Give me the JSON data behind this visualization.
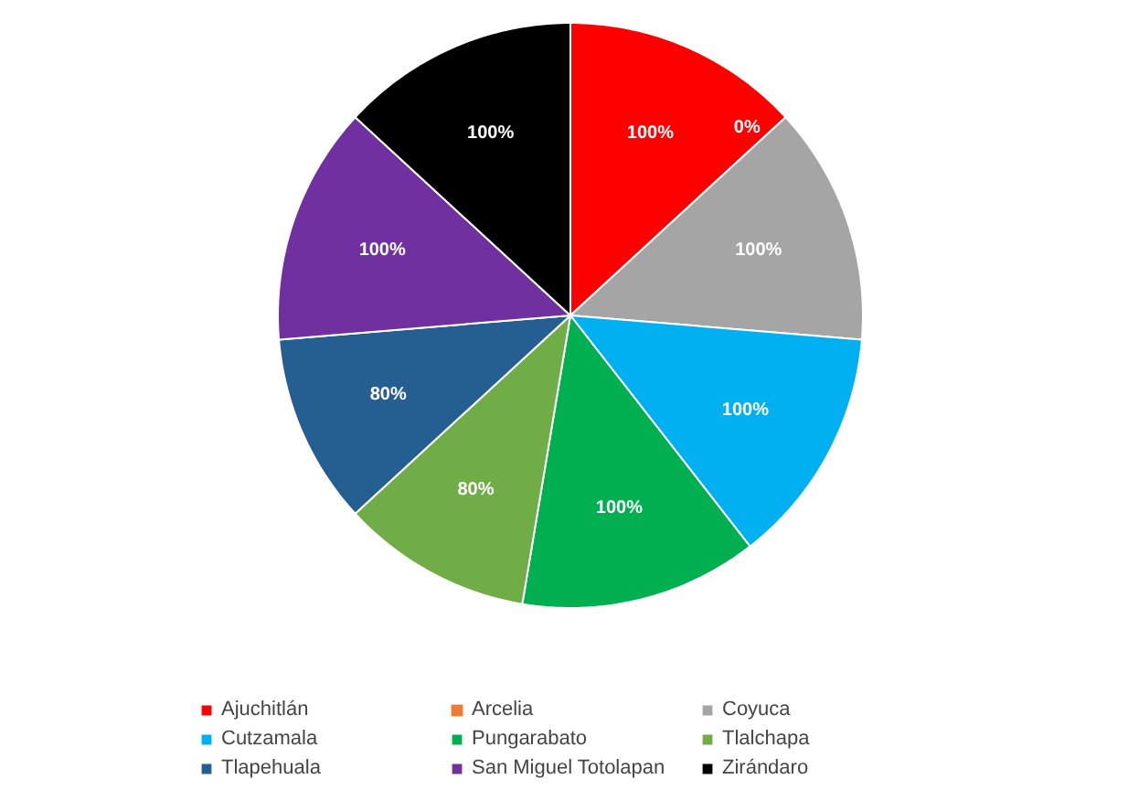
{
  "chart_data": {
    "type": "pie",
    "categories": [
      "Ajuchitlán",
      "Arcelia",
      "Coyuca",
      "Cutzamala",
      "Pungarabato",
      "Tlalchapa",
      "Tlapehuala",
      "San Miguel Totolapan",
      "Zirándaro"
    ],
    "values": [
      100,
      0,
      100,
      100,
      100,
      80,
      80,
      100,
      100
    ],
    "colors": [
      "#ff0000",
      "#ed7d31",
      "#a5a5a5",
      "#00b0f0",
      "#00b050",
      "#70ad47",
      "#255e91",
      "#7030a0",
      "#000000"
    ],
    "value_labels": [
      "100%",
      "0%",
      "100%",
      "100%",
      "100%",
      "80%",
      "80%",
      "100%",
      "100%"
    ],
    "legend": "bottom"
  }
}
